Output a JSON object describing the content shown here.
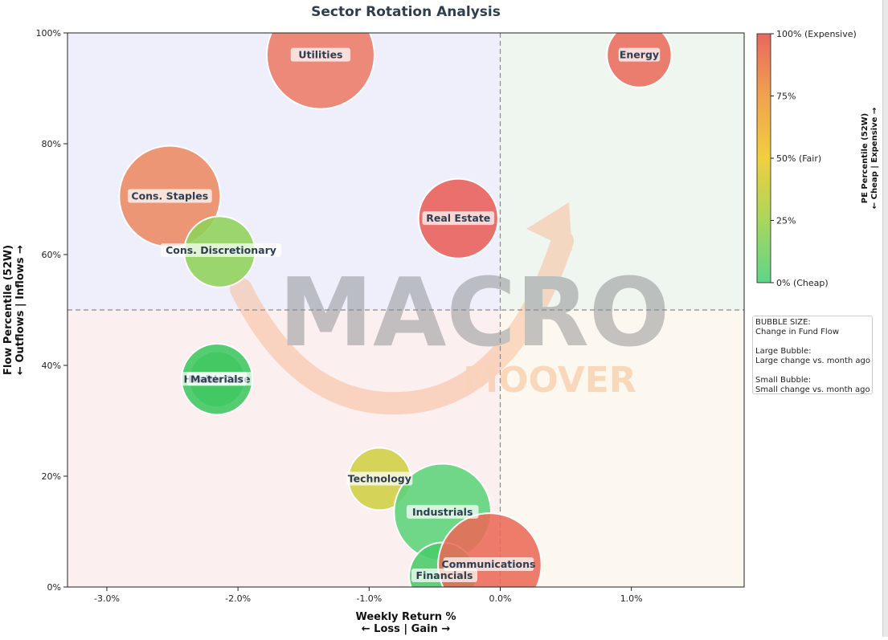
{
  "chart_data": {
    "type": "scatter",
    "title": "Sector Rotation Analysis",
    "xlabel_line1": "Weekly Return %",
    "xlabel_line2": "← Loss | Gain →",
    "ylabel_line1": "Flow Percentile (52W)",
    "ylabel_line2": "← Outflows | Inflows →",
    "xlim": [
      -3.3,
      1.86
    ],
    "ylim": [
      0,
      100
    ],
    "x_ticks": [
      {
        "value": -3.0,
        "label": "-3.0%"
      },
      {
        "value": -2.0,
        "label": "-2.0%"
      },
      {
        "value": -1.0,
        "label": "-1.0%"
      },
      {
        "value": 0.0,
        "label": "0.0%"
      },
      {
        "value": 1.0,
        "label": "1.0%"
      }
    ],
    "y_ticks": [
      {
        "value": 0,
        "label": "0%"
      },
      {
        "value": 20,
        "label": "20%"
      },
      {
        "value": 40,
        "label": "40%"
      },
      {
        "value": 60,
        "label": "60%"
      },
      {
        "value": 80,
        "label": "80%"
      },
      {
        "value": 100,
        "label": "100%"
      }
    ],
    "reference_lines": {
      "x": 0.0,
      "y": 50
    },
    "quadrant_colors": {
      "top_left": "#efeffb",
      "top_right": "#eff6ef",
      "bottom_left": "#fcefef",
      "bottom_right": "#fdf8ef"
    },
    "points": [
      {
        "name": "Utilities",
        "x": -1.37,
        "y": 96,
        "color": "#ec7b67",
        "size_weight": 1.0
      },
      {
        "name": "Energy",
        "x": 1.06,
        "y": 96,
        "color": "#ea6c5d",
        "size_weight": 0.6
      },
      {
        "name": "Cons. Staples",
        "x": -2.52,
        "y": 70.5,
        "color": "#ec8a63",
        "size_weight": 0.94
      },
      {
        "name": "Real Estate",
        "x": -0.32,
        "y": 66.5,
        "color": "#e85f58",
        "size_weight": 0.74
      },
      {
        "name": "Cons. Discretionary",
        "x": -2.14,
        "y": 60.5,
        "color": "#8fd25a",
        "size_weight": 0.66
      },
      {
        "name": "Health Care",
        "x": -2.16,
        "y": 37.5,
        "color": "#4ccf6a",
        "size_weight": 0.52
      },
      {
        "name": "Materials",
        "x": -2.16,
        "y": 37.5,
        "color": "#3ec760",
        "size_weight": 0.66
      },
      {
        "name": "Technology",
        "x": -0.92,
        "y": 19.5,
        "color": "#cfd044",
        "size_weight": 0.58
      },
      {
        "name": "Industrials",
        "x": -0.44,
        "y": 13.5,
        "color": "#5cd37a",
        "size_weight": 0.9
      },
      {
        "name": "Financials",
        "x": -0.44,
        "y": 2,
        "color": "#48cc6a",
        "size_weight": 0.62
      },
      {
        "name": "Communications",
        "x": -0.08,
        "y": 4,
        "color": "#eb6a58",
        "size_weight": 0.96
      }
    ],
    "colorbar": {
      "title_line1": "PE Percentile (52W)",
      "title_line2": "← Cheap | Expensive →",
      "colors": [
        "#5dd68a",
        "#a9d65c",
        "#f1cf3f",
        "#f0a24f",
        "#e8685f"
      ],
      "ticks": [
        {
          "value": 100,
          "label": "100% (Expensive)"
        },
        {
          "value": 75,
          "label": "75%"
        },
        {
          "value": 50,
          "label": "50% (Fair)"
        },
        {
          "value": 25,
          "label": "25%"
        },
        {
          "value": 0,
          "label": "0% (Cheap)"
        }
      ]
    },
    "size_legend": {
      "title": "BUBBLE SIZE:",
      "subtitle": "Change in Fund Flow",
      "large_title": "Large Bubble:",
      "large_desc": "Large change vs. month ago",
      "small_title": "Small Bubble:",
      "small_desc": "Small change vs. month ago"
    },
    "watermark": {
      "line1": "MACRO",
      "line2": "MOOVER"
    }
  }
}
